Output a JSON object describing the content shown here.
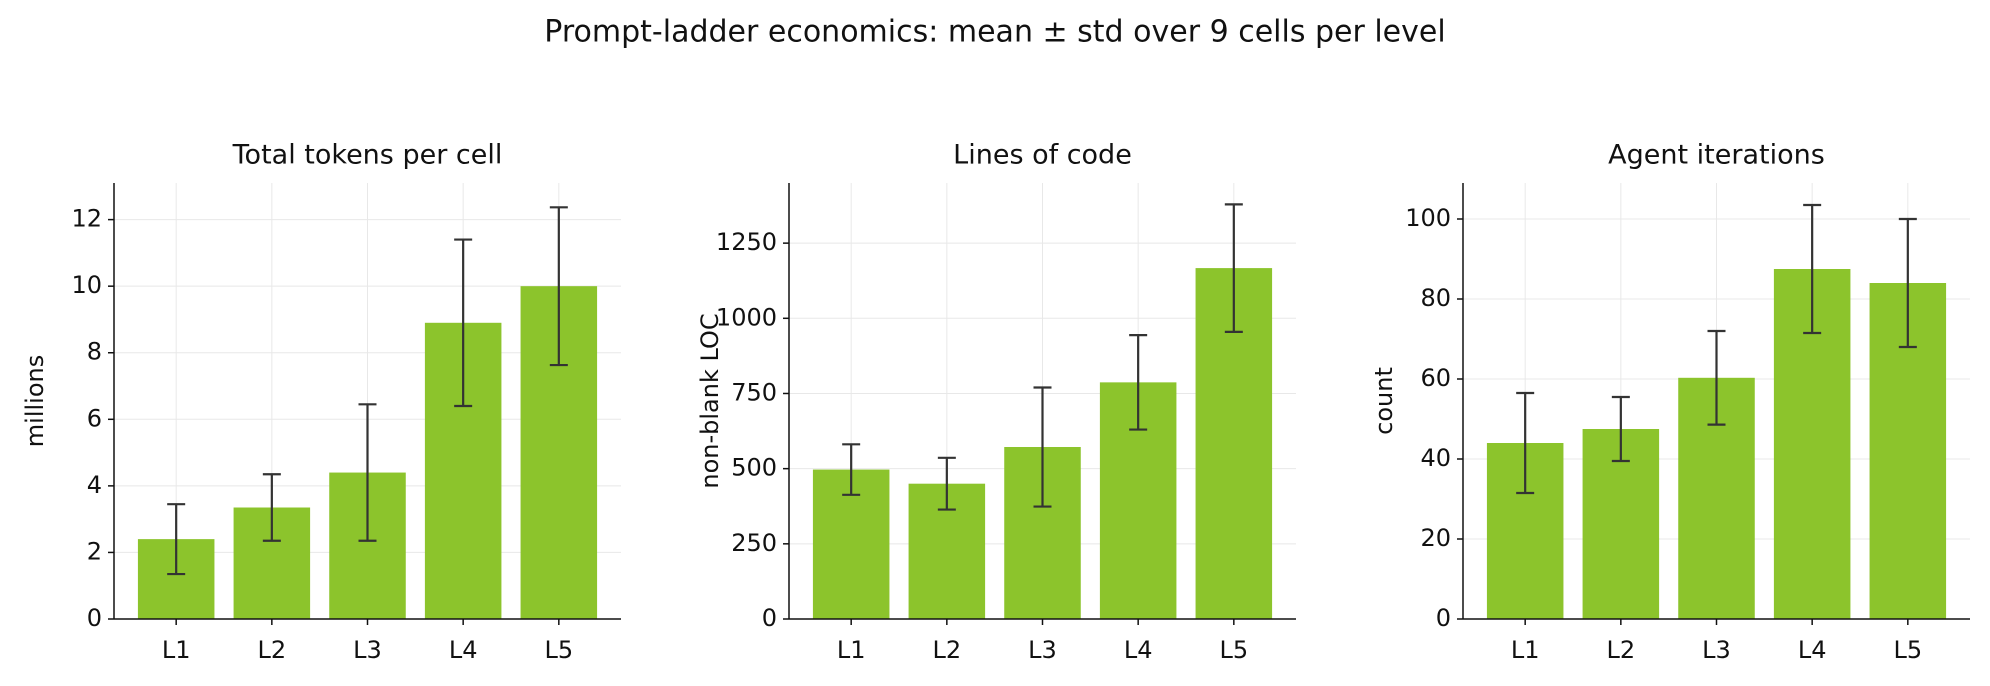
{
  "title": "Prompt-ladder economics: mean ± std over 9 cells per level",
  "chart_data": [
    {
      "type": "bar",
      "title": "Total tokens per cell",
      "y_label": "millions",
      "categories": [
        "L1",
        "L2",
        "L3",
        "L4",
        "L5"
      ],
      "values": [
        2.4,
        3.35,
        4.4,
        8.9,
        10.0
      ],
      "errors": [
        1.05,
        1.0,
        2.05,
        2.5,
        2.37
      ],
      "color": "#8cc42c",
      "ylim": [
        0,
        13.1
      ],
      "yticks": [
        0,
        2,
        4,
        6,
        8,
        10,
        12
      ],
      "grid": true
    },
    {
      "type": "bar",
      "title": "Lines of code",
      "y_label": "non-blank LOC",
      "categories": [
        "L1",
        "L2",
        "L3",
        "L4",
        "L5"
      ],
      "values": [
        497,
        450,
        572,
        787,
        1167
      ],
      "errors": [
        84,
        86,
        198,
        157,
        212
      ],
      "color": "#8cc42c",
      "ylim": [
        0,
        1450
      ],
      "yticks": [
        0,
        250,
        500,
        750,
        1000,
        1250
      ],
      "grid": true
    },
    {
      "type": "bar",
      "title": "Agent iterations",
      "y_label": "count",
      "categories": [
        "L1",
        "L2",
        "L3",
        "L4",
        "L5"
      ],
      "values": [
        44,
        47.5,
        60.3,
        87.5,
        84
      ],
      "errors": [
        12.5,
        8,
        11.7,
        16,
        16
      ],
      "color": "#8cc42c",
      "ylim": [
        0,
        109
      ],
      "yticks": [
        0,
        20,
        40,
        60,
        80,
        100
      ],
      "grid": true
    }
  ]
}
